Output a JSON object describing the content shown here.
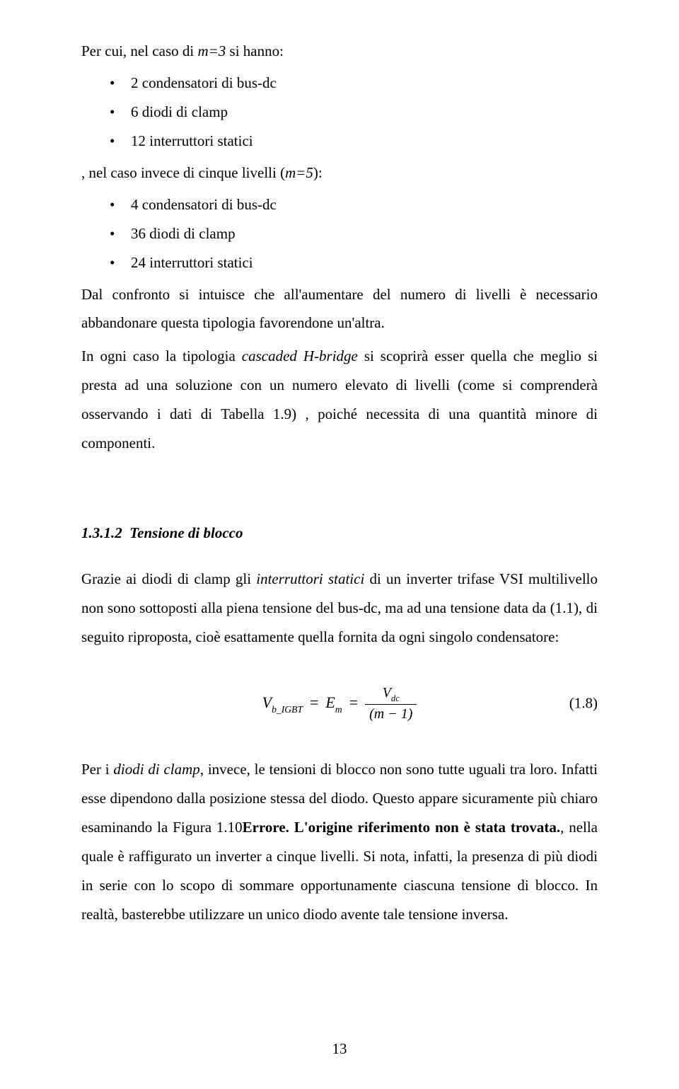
{
  "intro_line": "Per cui, nel caso di ",
  "intro_m3": "m=3",
  "intro_tail": " si hanno:",
  "list_m3": [
    "2 condensatori di bus-dc",
    "6 diodi di clamp",
    "12 interruttori statici"
  ],
  "mid_line_pre": ", nel caso invece di cinque livelli (",
  "mid_m5": "m=5",
  "mid_line_post": "):",
  "list_m5": [
    "4 condensatori di bus-dc",
    "36 diodi di clamp",
    "24 interruttori statici"
  ],
  "para1": "Dal confronto si intuisce che all'aumentare del numero di livelli è necessario abbandonare questa tipologia favorendone un'altra.",
  "para2_pre": "In ogni caso la tipologia ",
  "para2_em": "cascaded H-bridge",
  "para2_post": " si scoprirà esser quella che meglio si presta ad una soluzione con un numero elevato di livelli (come si comprenderà osservando i dati di Tabella 1.9) , poiché necessita di una quantità minore di componenti.",
  "heading_num": "1.3.1.2",
  "heading_text": "Tensione di blocco",
  "para3_pre": "Grazie ai diodi di clamp gli ",
  "para3_em": "interruttori statici",
  "para3_post": " di un inverter trifase VSI multilivello non sono sottoposti alla piena tensione del bus-dc, ma ad una tensione data da (1.1), di seguito riproposta, cioè esattamente quella fornita da ogni singolo condensatore:",
  "eq": {
    "lhs_V": "V",
    "lhs_sub": "b_IGBT",
    "eq1": " = ",
    "mid_E": "E",
    "mid_sub": "m",
    "eq2": " = ",
    "frac_num_V": "V",
    "frac_num_sub": "dc",
    "frac_den": "(m − 1)",
    "number": "(1.8)"
  },
  "para4_pre": "Per i ",
  "para4_em": "diodi di clamp",
  "para4_mid1": ", invece, le tensioni di blocco non sono tutte uguali tra loro. Infatti esse dipendono dalla posizione stessa del diodo. Questo appare sicuramente più chiaro esaminando la Figura 1.10",
  "para4_bold": "Errore. L'origine riferimento non è stata trovata.",
  "para4_mid2": ", nella quale è raffigurato un inverter a cinque livelli. Si nota, infatti, la presenza di più diodi in serie con lo scopo di sommare opportunamente ciascuna tensione di blocco. In realtà, basterebbe utilizzare un unico diodo avente tale tensione inversa.",
  "page_number": "13"
}
